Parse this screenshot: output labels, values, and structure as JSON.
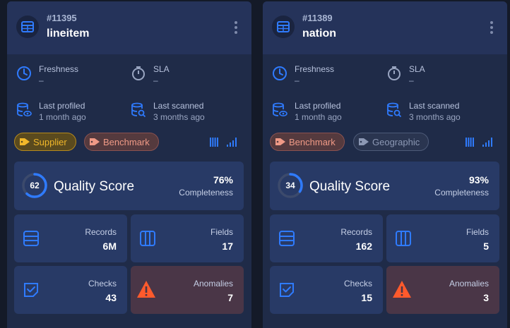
{
  "cards": [
    {
      "id": "#11395",
      "name": "lineitem",
      "freshness_label": "Freshness",
      "freshness_value": "–",
      "sla_label": "SLA",
      "sla_value": "–",
      "last_profiled_label": "Last profiled",
      "last_profiled_value": "1 month ago",
      "last_scanned_label": "Last scanned",
      "last_scanned_value": "3 months ago",
      "tags": [
        {
          "label": "Supplier",
          "kind": "supplier"
        },
        {
          "label": "Benchmark",
          "kind": "benchmark"
        }
      ],
      "quality_score": "62",
      "quality_fraction": 0.62,
      "quality_title": "Quality Score",
      "completeness_value": "76%",
      "completeness_label": "Completeness",
      "records_label": "Records",
      "records_value": "6M",
      "fields_label": "Fields",
      "fields_value": "17",
      "checks_label": "Checks",
      "checks_value": "43",
      "anomalies_label": "Anomalies",
      "anomalies_value": "7"
    },
    {
      "id": "#11389",
      "name": "nation",
      "freshness_label": "Freshness",
      "freshness_value": "–",
      "sla_label": "SLA",
      "sla_value": "–",
      "last_profiled_label": "Last profiled",
      "last_profiled_value": "1 month ago",
      "last_scanned_label": "Last scanned",
      "last_scanned_value": "3 months ago",
      "tags": [
        {
          "label": "Benchmark",
          "kind": "benchmark"
        },
        {
          "label": "Geographic",
          "kind": "geographic"
        }
      ],
      "quality_score": "34",
      "quality_fraction": 0.34,
      "quality_title": "Quality Score",
      "completeness_value": "93%",
      "completeness_label": "Completeness",
      "records_label": "Records",
      "records_value": "162",
      "fields_label": "Fields",
      "fields_value": "5",
      "checks_label": "Checks",
      "checks_value": "15",
      "anomalies_label": "Anomalies",
      "anomalies_value": "3"
    }
  ],
  "colors": {
    "accent": "#2f7bff",
    "supplier": "#f2b82a",
    "benchmark": "#f09a86",
    "geographic": "#8c98b4",
    "warning": "#ff5a2c"
  },
  "icons": [
    "table-icon",
    "kebab-menu-icon",
    "clock-icon",
    "stopwatch-icon",
    "database-eye-icon",
    "database-search-icon",
    "tag-icon",
    "column-bars-icon",
    "signal-bars-icon",
    "records-icon",
    "fields-icon",
    "checks-icon",
    "warning-icon"
  ]
}
